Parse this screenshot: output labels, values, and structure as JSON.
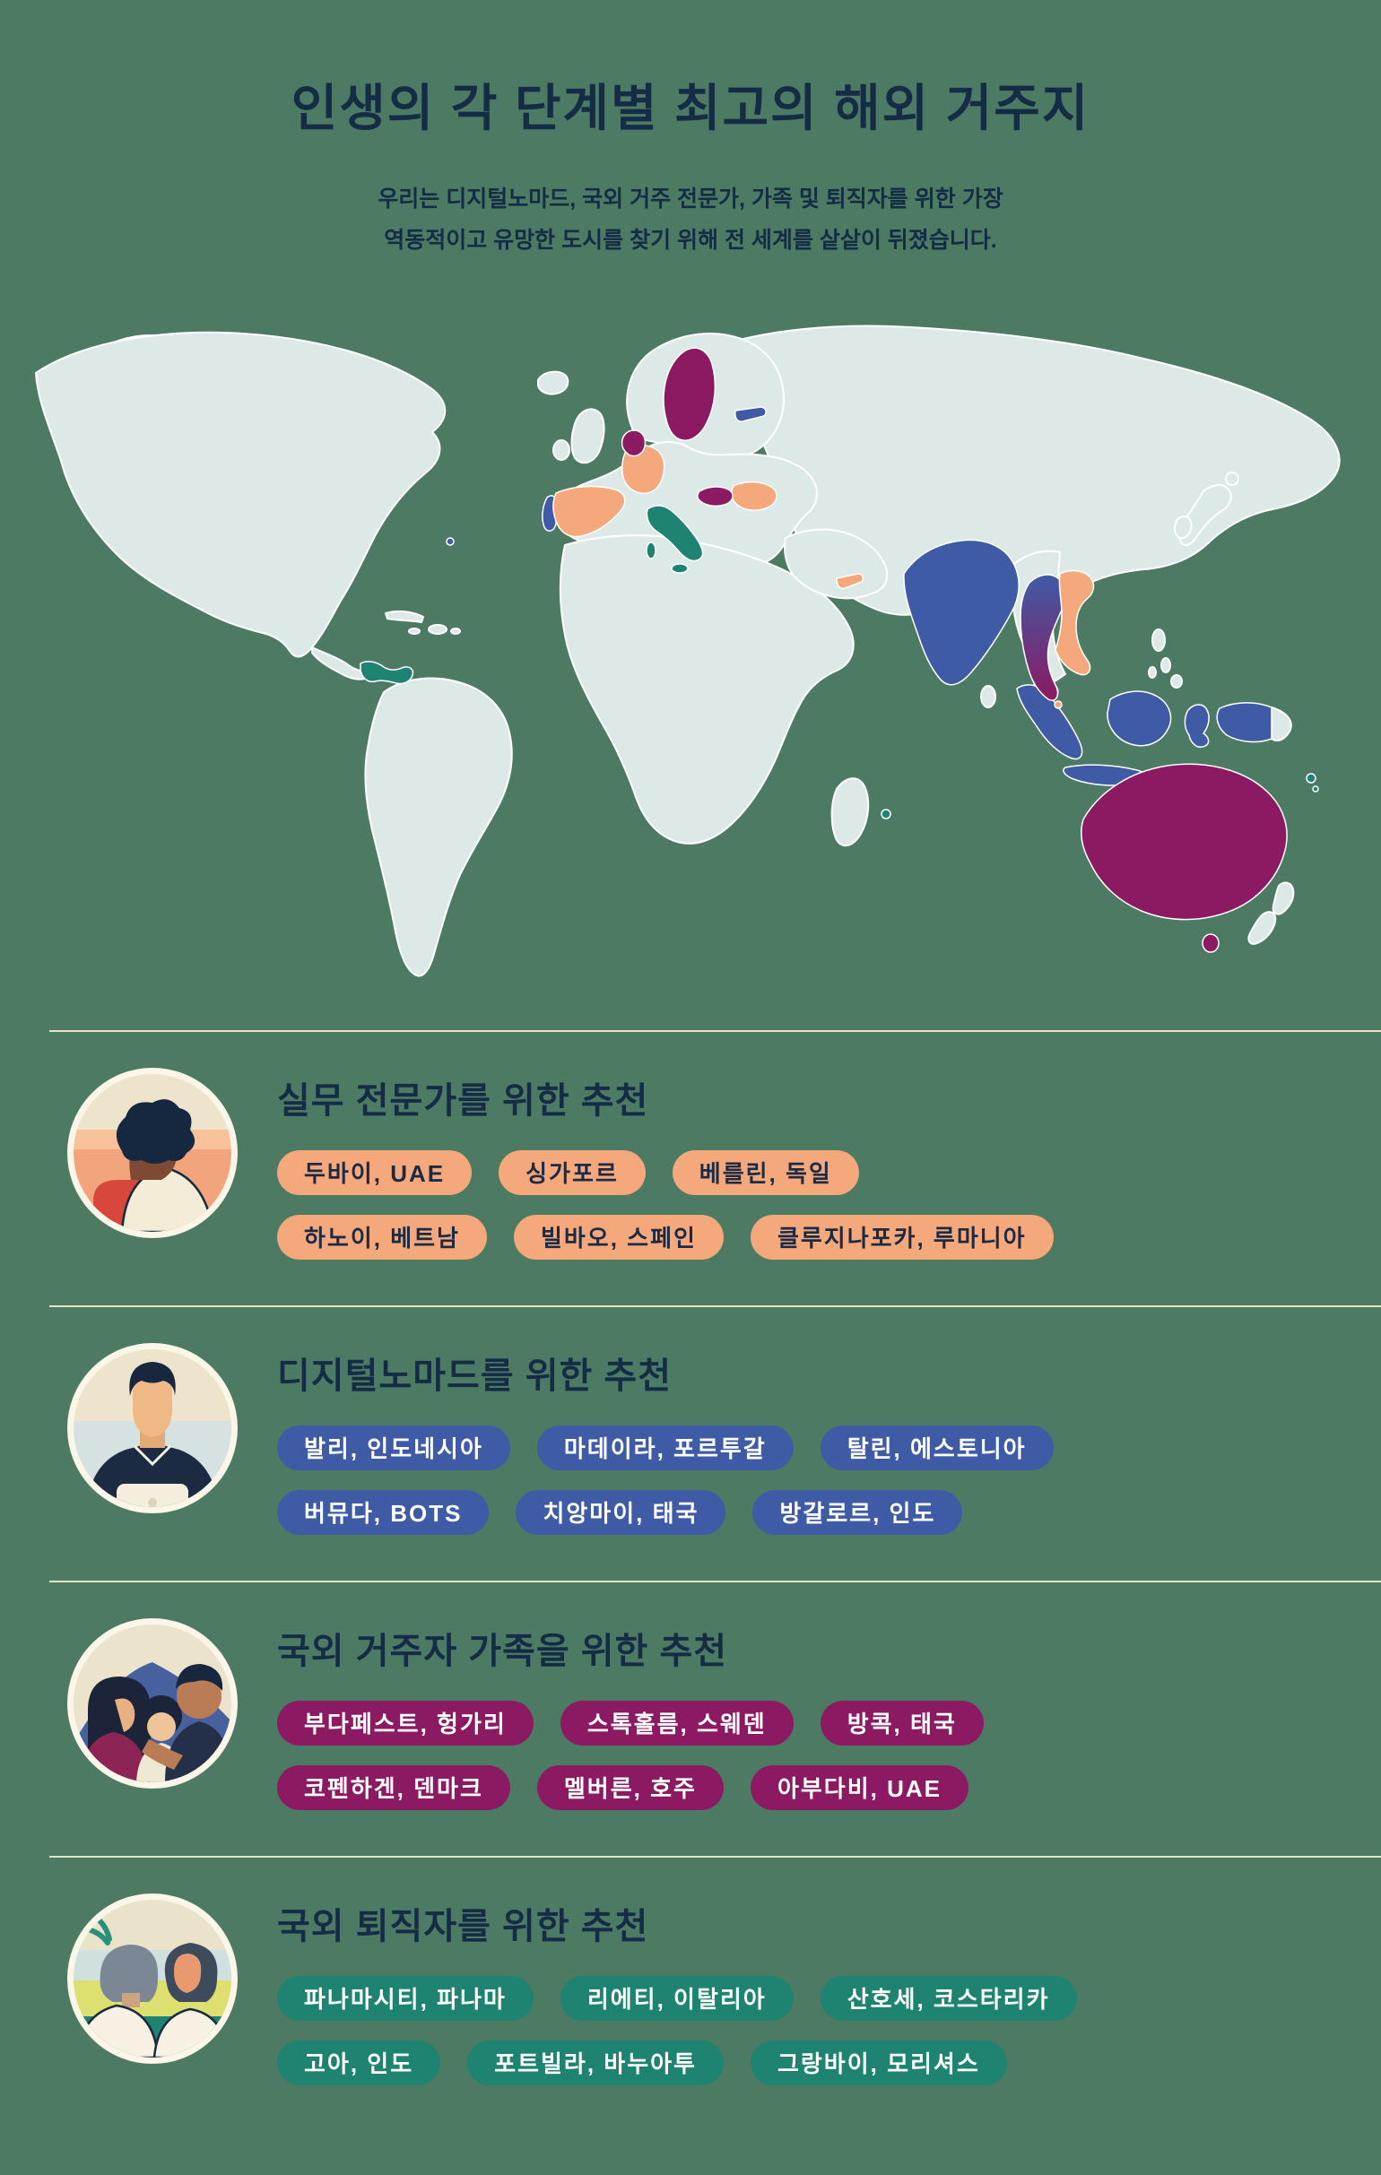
{
  "header": {
    "title": "인생의 각 단계별 최고의 해외 거주지",
    "subtitle": "우리는 디지털노마드, 국외 거주 전문가, 가족 및 퇴직자를 위한 가장\n역동적이고 유망한 도시를 찾기 위해 전 세계를 샅샅이 뒤졌습니다."
  },
  "colors": {
    "background": "#4d7a63",
    "map_land": "#dde9e6",
    "heading_text": "#142c45",
    "divider": "#e9e1c6",
    "professionals_accent": "#f4a87c",
    "nomads_accent": "#3f5ba6",
    "families_accent": "#8c1a62",
    "retirees_accent": "#1e8370"
  },
  "map": {
    "description": "world-map-with-highlighted-countries",
    "highlighted_by_category": {
      "professionals_orange": [
        "UAE",
        "Germany",
        "Vietnam",
        "Spain",
        "Romania",
        "Singapore"
      ],
      "nomads_blue": [
        "Indonesia",
        "Portugal",
        "Estonia",
        "Thailand",
        "India",
        "Bermuda"
      ],
      "families_magenta": [
        "Hungary",
        "Sweden",
        "Denmark",
        "Australia",
        "Thailand"
      ],
      "retirees_teal": [
        "Panama",
        "Costa Rica",
        "Italy",
        "Mauritius",
        "Vanuatu"
      ]
    }
  },
  "sections": [
    {
      "id": "professionals",
      "avatar": "professional-portrait-illustration",
      "title": "실무 전문가를 위한 추천",
      "pill_rows": [
        [
          "두바이, UAE",
          "싱가포르",
          "베를린, 독일"
        ],
        [
          "하노이, 베트남",
          "빌바오, 스페인",
          "클루지나포카, 루마니아"
        ]
      ]
    },
    {
      "id": "nomads",
      "avatar": "digital-nomad-laptop-illustration",
      "title": "디지털노마드를 위한 추천",
      "pill_rows": [
        [
          "발리, 인도네시아",
          "마데이라, 포르투갈",
          "탈린, 에스토니아"
        ],
        [
          "버뮤다, BOTS",
          "치앙마이, 태국",
          "방갈로르, 인도"
        ]
      ]
    },
    {
      "id": "families",
      "avatar": "expat-family-illustration",
      "title": "국외 거주자 가족을 위한 추천",
      "pill_rows": [
        [
          "부다페스트, 헝가리",
          "스톡홀름, 스웨덴",
          "방콕, 태국"
        ],
        [
          "코펜하겐, 덴마크",
          "멜버른, 호주",
          "아부다비, UAE"
        ]
      ]
    },
    {
      "id": "retirees",
      "avatar": "retired-couple-illustration",
      "title": "국외 퇴직자를 위한 추천",
      "pill_rows": [
        [
          "파나마시티, 파나마",
          "리에티, 이탈리아",
          "산호세, 코스타리카"
        ],
        [
          "고아, 인도",
          "포트빌라, 바누아투",
          "그랑바이, 모리셔스"
        ]
      ]
    }
  ]
}
